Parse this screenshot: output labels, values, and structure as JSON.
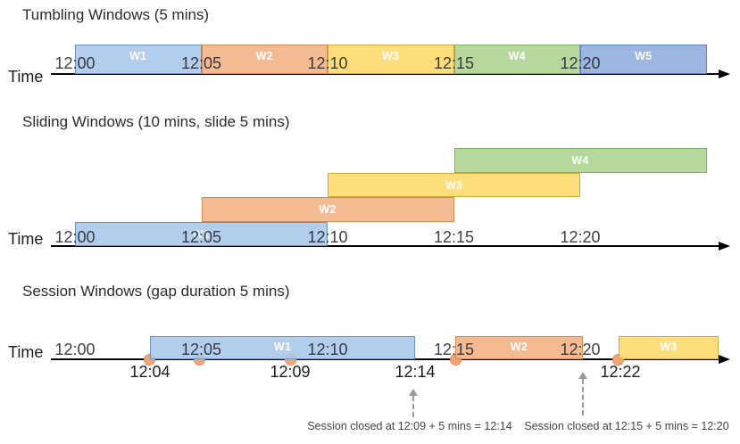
{
  "diagram": {
    "palette": {
      "lightblue": "#A6C7E9",
      "orange": "#F2B183",
      "yellow": "#FED966",
      "green": "#ABD28F",
      "blue": "#8FAADC",
      "event_dot": "#F2A477",
      "axis": "#000000"
    },
    "sections": [
      {
        "id": "tumbling-windows",
        "title": "Tumbling Windows (5 mins)",
        "time_axis_label": "Time",
        "tick_labels": [
          "12:00",
          "12:05",
          "12:10",
          "12:15",
          "12:20"
        ],
        "windows": [
          {
            "label": "W1",
            "color": "lightblue",
            "start": "12:00",
            "end": "12:05"
          },
          {
            "label": "W2",
            "color": "orange",
            "start": "12:05",
            "end": "12:10"
          },
          {
            "label": "W3",
            "color": "yellow",
            "start": "12:10",
            "end": "12:15"
          },
          {
            "label": "W4",
            "color": "green",
            "start": "12:15",
            "end": "12:20"
          },
          {
            "label": "W5",
            "color": "blue",
            "start": "12:20",
            "end": "12:25"
          }
        ]
      },
      {
        "id": "sliding-windows",
        "title": "Sliding Windows (10 mins, slide 5 mins)",
        "time_axis_label": "Time",
        "tick_labels": [
          "12:00",
          "12:05",
          "12:10",
          "12:15",
          "12:20"
        ],
        "windows": [
          {
            "label": "W1",
            "color": "lightblue",
            "start": "12:00",
            "end": "12:10",
            "row": 0
          },
          {
            "label": "W2",
            "color": "orange",
            "start": "12:05",
            "end": "12:15",
            "row": 1
          },
          {
            "label": "W3",
            "color": "yellow",
            "start": "12:10",
            "end": "12:20",
            "row": 2
          },
          {
            "label": "W4",
            "color": "green",
            "start": "12:15",
            "end": "12:25",
            "row": 3
          }
        ]
      },
      {
        "id": "session-windows",
        "title": "Session Windows (gap duration 5 mins)",
        "time_axis_label": "Time",
        "tick_labels": [
          "12:00",
          "12:05",
          "12:10",
          "12:15",
          "12:20"
        ],
        "windows": [
          {
            "label": "W1",
            "color": "lightblue",
            "start": "12:04",
            "end": "12:14"
          },
          {
            "label": "W2",
            "color": "orange",
            "start": "12:15",
            "end": "12:20"
          },
          {
            "label": "W3",
            "color": "yellow",
            "start": "12:22",
            "end": null
          }
        ],
        "events": [
          "12:04",
          "12:05",
          "12:09",
          "12:15",
          "12:22"
        ],
        "event_labels_below": [
          "12:04",
          "12:09",
          "12:14",
          "12:22"
        ],
        "annotations": [
          {
            "text": "Session closed at 12:09 + 5 mins = 12:14",
            "points_to": "12:14"
          },
          {
            "text": "Session closed at 12:15 + 5 mins = 12:20",
            "points_to": "12:20"
          }
        ]
      }
    ]
  }
}
